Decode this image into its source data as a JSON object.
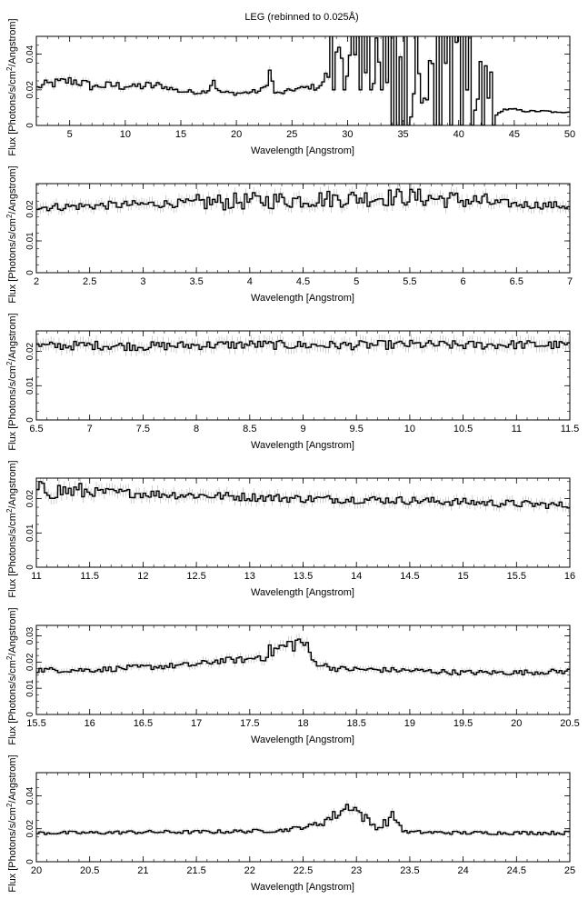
{
  "figure_title": "LEG (rebinned to 0.025Å)",
  "y_label": "Flux [Photons/s/cm²/Angstrom]",
  "x_label": "Wavelength [Angstrom]",
  "colors": {
    "data": "#000000",
    "errorbar": "#b0b0b0",
    "frame": "#000000"
  },
  "chart_data": [
    {
      "type": "line",
      "step": true,
      "xlabel": "Wavelength [Angstrom]",
      "ylabel": "Flux [Photons/s/cm²/Angstrom]",
      "xlim": [
        2,
        50
      ],
      "ylim": [
        0,
        0.05
      ],
      "xticks": [
        5,
        10,
        15,
        20,
        25,
        30,
        35,
        40,
        45,
        50
      ],
      "xtick_labels": [
        "5",
        "10",
        "15",
        "20",
        "25",
        "30",
        "35",
        "40",
        "45",
        "50"
      ],
      "yticks": [
        0,
        0.02,
        0.04
      ],
      "ytick_labels": [
        "0",
        "0.02",
        "0.04"
      ],
      "x_minor_step": 1,
      "y_minor_step": 0.005,
      "noise_regions": [
        [
          28,
          34,
          0.02,
          0.05
        ],
        [
          34,
          43.3,
          0,
          0.05
        ]
      ],
      "series": [
        {
          "points": [
            [
              2,
              0.021
            ],
            [
              3,
              0.023
            ],
            [
              4,
              0.024
            ],
            [
              5,
              0.025
            ],
            [
              5.5,
              0.025
            ],
            [
              6.5,
              0.023
            ],
            [
              7,
              0.022
            ],
            [
              8,
              0.022
            ],
            [
              9,
              0.0225
            ],
            [
              10,
              0.022
            ],
            [
              11,
              0.022
            ],
            [
              12,
              0.0222
            ],
            [
              13,
              0.0222
            ],
            [
              14,
              0.021
            ],
            [
              15,
              0.019
            ],
            [
              16,
              0.019
            ],
            [
              16.5,
              0.0185
            ],
            [
              17,
              0.019
            ],
            [
              17.5,
              0.02
            ],
            [
              17.8,
              0.025
            ],
            [
              18,
              0.026
            ],
            [
              18.3,
              0.019
            ],
            [
              19,
              0.0185
            ],
            [
              20,
              0.018
            ],
            [
              21,
              0.0185
            ],
            [
              21.5,
              0.019
            ],
            [
              22,
              0.019
            ],
            [
              22.5,
              0.021
            ],
            [
              22.8,
              0.026
            ],
            [
              23,
              0.03
            ],
            [
              23.2,
              0.025
            ],
            [
              23.5,
              0.018
            ],
            [
              24,
              0.018
            ],
            [
              25,
              0.02
            ],
            [
              26,
              0.021
            ],
            [
              27,
              0.022
            ],
            [
              28,
              0.023
            ],
            [
              29,
              0.024
            ],
            [
              30,
              0.025
            ],
            [
              31,
              0.026
            ],
            [
              32,
              0.027
            ],
            [
              33,
              0.028
            ],
            [
              34,
              0.028
            ],
            [
              43.3,
              0.005
            ],
            [
              44,
              0.009
            ],
            [
              45,
              0.009
            ],
            [
              46,
              0.008
            ],
            [
              47,
              0.008
            ],
            [
              48,
              0.008
            ],
            [
              49,
              0.007
            ],
            [
              50,
              0.008
            ]
          ]
        }
      ]
    },
    {
      "type": "line",
      "step": true,
      "xlabel": "Wavelength [Angstrom]",
      "ylabel": "Flux [Photons/s/cm²/Angstrom]",
      "xlim": [
        2,
        7
      ],
      "ylim": [
        0,
        0.028
      ],
      "xticks": [
        2,
        2.5,
        3,
        3.5,
        4,
        4.5,
        5,
        5.5,
        6,
        6.5,
        7
      ],
      "xtick_labels": [
        "2",
        "2.5",
        "3",
        "3.5",
        "4",
        "4.5",
        "5",
        "5.5",
        "6",
        "6.5",
        "7"
      ],
      "yticks": [
        0,
        0.01,
        0.02
      ],
      "ytick_labels": [
        "0",
        "0.01",
        "0.02"
      ],
      "x_minor_step": 0.1,
      "y_minor_step": 0.0025,
      "series": [
        {
          "points": [
            [
              2,
              0.0205
            ],
            [
              2.5,
              0.021
            ],
            [
              3,
              0.0215
            ],
            [
              3.5,
              0.022
            ],
            [
              4,
              0.0225
            ],
            [
              4.5,
              0.023
            ],
            [
              5,
              0.0235
            ],
            [
              5.5,
              0.0238
            ],
            [
              5.8,
              0.0232
            ],
            [
              6,
              0.0228
            ],
            [
              6.5,
              0.0215
            ],
            [
              7,
              0.021
            ]
          ]
        }
      ]
    },
    {
      "type": "line",
      "step": true,
      "xlabel": "Wavelength [Angstrom]",
      "ylabel": "Flux [Photons/s/cm²/Angstrom]",
      "xlim": [
        6.5,
        11.5
      ],
      "ylim": [
        0,
        0.026
      ],
      "xticks": [
        6.5,
        7,
        7.5,
        8,
        8.5,
        9,
        9.5,
        10,
        10.5,
        11,
        11.5
      ],
      "xtick_labels": [
        "6.5",
        "7",
        "7.5",
        "8",
        "8.5",
        "9",
        "9.5",
        "10",
        "10.5",
        "11",
        "11.5"
      ],
      "yticks": [
        0,
        0.01,
        0.02
      ],
      "ytick_labels": [
        "0",
        "0.01",
        "0.02"
      ],
      "x_minor_step": 0.1,
      "y_minor_step": 0.0025,
      "series": [
        {
          "points": [
            [
              6.5,
              0.0215
            ],
            [
              7,
              0.0218
            ],
            [
              7.5,
              0.0215
            ],
            [
              8,
              0.0218
            ],
            [
              8.5,
              0.022
            ],
            [
              9,
              0.0218
            ],
            [
              9.5,
              0.0218
            ],
            [
              10,
              0.022
            ],
            [
              10.5,
              0.0218
            ],
            [
              11,
              0.022
            ],
            [
              11.5,
              0.0218
            ]
          ]
        }
      ]
    },
    {
      "type": "line",
      "step": true,
      "xlabel": "Wavelength [Angstrom]",
      "ylabel": "Flux [Photons/s/cm²/Angstrom]",
      "xlim": [
        11,
        16
      ],
      "ylim": [
        0,
        0.026
      ],
      "xticks": [
        11,
        11.5,
        12,
        12.5,
        13,
        13.5,
        14,
        14.5,
        15,
        15.5,
        16
      ],
      "xtick_labels": [
        "11",
        "11.5",
        "12",
        "12.5",
        "13",
        "13.5",
        "14",
        "14.5",
        "15",
        "15.5",
        "16"
      ],
      "yticks": [
        0,
        0.01,
        0.02
      ],
      "ytick_labels": [
        "0",
        "0.01",
        "0.02"
      ],
      "x_minor_step": 0.1,
      "y_minor_step": 0.0025,
      "series": [
        {
          "points": [
            [
              11,
              0.0225
            ],
            [
              11.5,
              0.022
            ],
            [
              12,
              0.0215
            ],
            [
              12.5,
              0.021
            ],
            [
              13,
              0.0205
            ],
            [
              13.5,
              0.02
            ],
            [
              14,
              0.0198
            ],
            [
              14.5,
              0.0195
            ],
            [
              15,
              0.019
            ],
            [
              15.5,
              0.0185
            ],
            [
              16,
              0.018
            ]
          ]
        }
      ]
    },
    {
      "type": "line",
      "step": true,
      "xlabel": "Wavelength [Angstrom]",
      "ylabel": "Flux [Photons/s/cm²/Angstrom]",
      "xlim": [
        15.5,
        20.5
      ],
      "ylim": [
        0,
        0.034
      ],
      "xticks": [
        15.5,
        16,
        16.5,
        17,
        17.5,
        18,
        18.5,
        19,
        19.5,
        20,
        20.5
      ],
      "xtick_labels": [
        "15.5",
        "16",
        "16.5",
        "17",
        "17.5",
        "18",
        "18.5",
        "19",
        "19.5",
        "20",
        "20.5"
      ],
      "yticks": [
        0,
        0.01,
        0.02,
        0.03
      ],
      "ytick_labels": [
        "0",
        "0.01",
        "0.02",
        "0.03"
      ],
      "x_minor_step": 0.1,
      "y_minor_step": 0.0025,
      "series": [
        {
          "points": [
            [
              15.5,
              0.017
            ],
            [
              16,
              0.017
            ],
            [
              16.5,
              0.018
            ],
            [
              17,
              0.019
            ],
            [
              17.2,
              0.0205
            ],
            [
              17.5,
              0.021
            ],
            [
              17.7,
              0.024
            ],
            [
              17.9,
              0.027
            ],
            [
              18,
              0.028
            ],
            [
              18.1,
              0.02
            ],
            [
              18.3,
              0.0175
            ],
            [
              18.5,
              0.0172
            ],
            [
              19,
              0.0168
            ],
            [
              19.5,
              0.016
            ],
            [
              20,
              0.016
            ],
            [
              20.5,
              0.0165
            ]
          ]
        }
      ]
    },
    {
      "type": "line",
      "step": true,
      "xlabel": "Wavelength [Angstrom]",
      "ylabel": "Flux [Photons/s/cm²/Angstrom]",
      "xlim": [
        20,
        25
      ],
      "ylim": [
        0,
        0.054
      ],
      "xticks": [
        20,
        20.5,
        21,
        21.5,
        22,
        22.5,
        23,
        23.5,
        24,
        24.5,
        25
      ],
      "xtick_labels": [
        "20",
        "20.5",
        "21",
        "21.5",
        "22",
        "22.5",
        "23",
        "23.5",
        "24",
        "24.5",
        "25"
      ],
      "yticks": [
        0,
        0.02,
        0.04
      ],
      "ytick_labels": [
        "0",
        "0.02",
        "0.04"
      ],
      "x_minor_step": 0.1,
      "y_minor_step": 0.005,
      "series": [
        {
          "points": [
            [
              20,
              0.0175
            ],
            [
              20.5,
              0.0175
            ],
            [
              21,
              0.018
            ],
            [
              21.5,
              0.018
            ],
            [
              22,
              0.0185
            ],
            [
              22.3,
              0.019
            ],
            [
              22.6,
              0.022
            ],
            [
              22.8,
              0.028
            ],
            [
              22.95,
              0.035
            ],
            [
              23.05,
              0.028
            ],
            [
              23.2,
              0.02
            ],
            [
              23.35,
              0.028
            ],
            [
              23.45,
              0.018
            ],
            [
              24,
              0.0175
            ],
            [
              24.5,
              0.0175
            ],
            [
              25,
              0.0175
            ]
          ]
        }
      ]
    }
  ]
}
